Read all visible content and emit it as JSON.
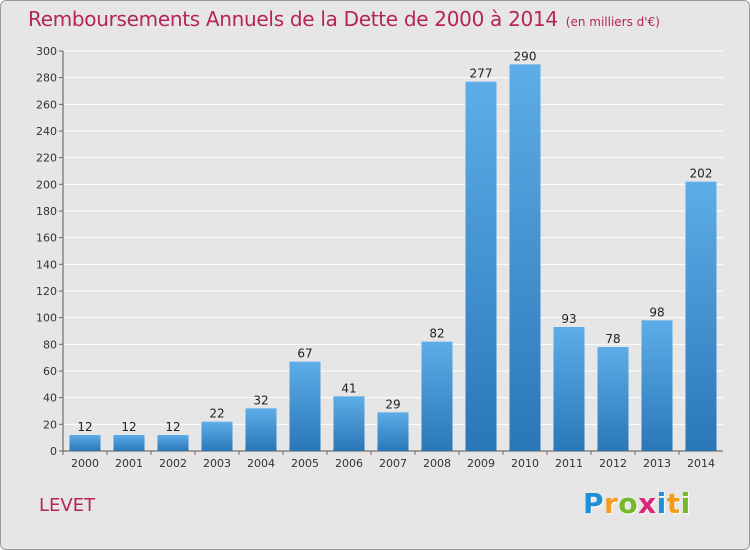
{
  "title": "Remboursements Annuels de la Dette de 2000 à 2014",
  "unit": "(en milliers d'€)",
  "commune": "LEVET",
  "brand": {
    "letters": [
      "P",
      "r",
      "o",
      "x",
      "i",
      "t",
      "i"
    ],
    "colors": [
      "#1f8fd6",
      "#f39b1b",
      "#76b82a",
      "#d9287a",
      "#1f8fd6",
      "#f39b1b",
      "#76b82a"
    ]
  },
  "colors": {
    "title": "#b5245a",
    "bar_top": "#5dade8",
    "bar_bottom": "#2a77b8",
    "grid": "#ffffff",
    "frame": "#e6e6e6"
  },
  "chart_data": {
    "type": "bar",
    "title": "Remboursements Annuels de la Dette de 2000 à 2014",
    "xlabel": "",
    "ylabel": "",
    "categories": [
      "2000",
      "2001",
      "2002",
      "2003",
      "2004",
      "2005",
      "2006",
      "2007",
      "2008",
      "2009",
      "2010",
      "2011",
      "2012",
      "2013",
      "2014"
    ],
    "values": [
      12,
      12,
      12,
      22,
      32,
      67,
      41,
      29,
      82,
      277,
      290,
      93,
      78,
      98,
      202
    ],
    "ylim": [
      0,
      300
    ],
    "yticks": [
      0,
      20,
      40,
      60,
      80,
      100,
      120,
      140,
      160,
      180,
      200,
      220,
      240,
      260,
      280,
      300
    ],
    "grid": true,
    "data_labels": true
  }
}
